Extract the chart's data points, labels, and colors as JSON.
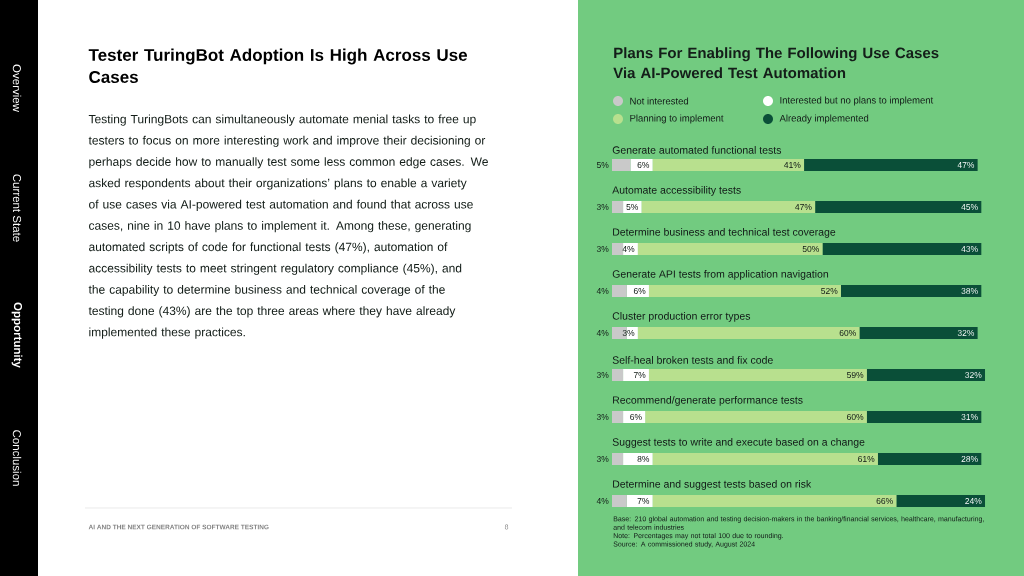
{
  "chart_data": {
    "type": "bar",
    "orientation": "horizontal",
    "stacked": true,
    "legend": "top",
    "title": "Plans For Enabling The Following Use Cases Via AI-Powered Test Automation",
    "categories": [
      "Generate automated functional tests",
      "Automate accessibility tests",
      "Determine business and technical test coverage",
      "Generate API tests from application navigation",
      "Cluster production error types",
      "Self-heal broken tests and fix code",
      "Recommend/generate performance tests",
      "Suggest tests to write and execute based on a change",
      "Determine and suggest tests based on risk"
    ],
    "series": [
      {
        "name": "Not interested",
        "color": "#c9c9c9",
        "values": [
          5,
          3,
          3,
          4,
          4,
          3,
          3,
          3,
          4
        ],
        "value_labels": [
          "5%",
          "3%",
          "3%",
          "4%",
          "4%",
          "3%",
          "3%",
          "3%",
          "4%"
        ]
      },
      {
        "name": "Interested but no plans to implement",
        "color": "#ffffff",
        "values": [
          6,
          5,
          4,
          6,
          3,
          7,
          6,
          8,
          7
        ],
        "value_labels": [
          "6%",
          "5%",
          "4%",
          "6%",
          "3%",
          "7%",
          "6%",
          "8%",
          "7%"
        ]
      },
      {
        "name": "Planning to implement",
        "color": "#b8e08e",
        "values": [
          41,
          47,
          50,
          52,
          60,
          59,
          60,
          61,
          66
        ],
        "value_labels": [
          "41%",
          "47%",
          "50%",
          "52%",
          "60%",
          "59%",
          "60%",
          "61%",
          "66%"
        ]
      },
      {
        "name": "Already implemented",
        "color": "#0a4f38",
        "values": [
          47,
          45,
          43,
          38,
          32,
          32,
          31,
          28,
          24
        ],
        "value_labels": [
          "47%",
          "45%",
          "43%",
          "38%",
          "32%",
          "32%",
          "31%",
          "28%",
          "24%"
        ]
      }
    ],
    "annotations": [
      "Tester TuringBot Adoption Is High Across Use Cases",
      "Testing TuringBots can simultaneously automate menial tasks to free up testers to focus on more interesting work and improve their decisioning or perhaps decide how to manually test some less common edge cases. We asked respondents about their organizations’ plans to enable a variety of use cases via AI-powered test automation and found that across use cases, nine in 10 have plans to implement it. Among these, generating automated scripts of code for functional tests (47%), automation of accessibility tests to meet stringent regulatory compliance (45%), and the capability to determine business and technical coverage of the testing done (43%) are the top three areas where they have already implemented these practices.",
      "Overview",
      "Current State",
      "Opportunity",
      "Conclusion",
      "AI AND THE NEXT GENERATION OF SOFTWARE TESTING",
      "8",
      "Base: 210 global automation and testing decision-makers in the banking/financial services, healthcare, manufacturing, and telecom industries",
      "Note: Percentages may not total 100 due to rounding.",
      "Source: A commissioned study, August 2024"
    ]
  }
}
